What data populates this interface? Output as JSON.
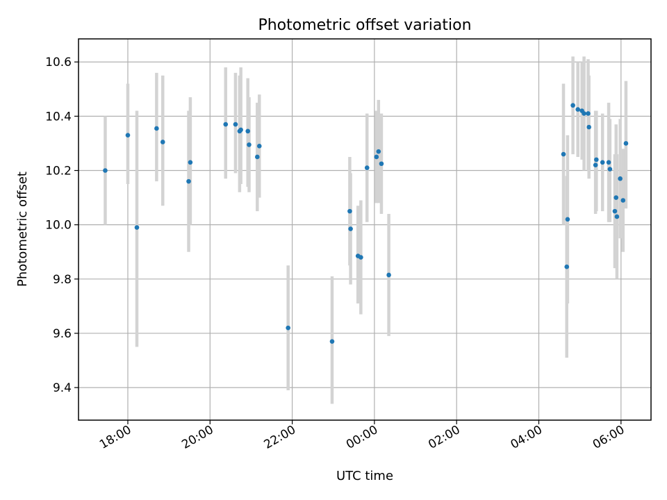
{
  "chart_data": {
    "type": "scatter",
    "title": "Photometric offset variation",
    "xlabel": "UTC time",
    "ylabel": "Photometric offset",
    "x_unit": "hours since 00:00 UTC",
    "xlim": [
      -7.2,
      6.73
    ],
    "ylim": [
      9.28,
      10.685
    ],
    "x_ticks": [
      {
        "value": -6,
        "label": "18:00"
      },
      {
        "value": -4,
        "label": "20:00"
      },
      {
        "value": -2,
        "label": "22:00"
      },
      {
        "value": 0,
        "label": "00:00"
      },
      {
        "value": 2,
        "label": "02:00"
      },
      {
        "value": 4,
        "label": "04:00"
      },
      {
        "value": 6,
        "label": "06:00"
      }
    ],
    "y_ticks": [
      {
        "value": 9.4,
        "label": "9.4"
      },
      {
        "value": 9.6,
        "label": "9.6"
      },
      {
        "value": 9.8,
        "label": "9.8"
      },
      {
        "value": 10.0,
        "label": "10.0"
      },
      {
        "value": 10.2,
        "label": "10.2"
      },
      {
        "value": 10.4,
        "label": "10.4"
      },
      {
        "value": 10.6,
        "label": "10.6"
      }
    ],
    "grid": true,
    "point_color": "#1f77b4",
    "errorbar_color": "#d3d3d3",
    "points": [
      {
        "x": -6.55,
        "y": 10.2,
        "lo": 10.0,
        "hi": 10.4
      },
      {
        "x": -6.0,
        "y": 10.33,
        "lo": 10.15,
        "hi": 10.52
      },
      {
        "x": -5.78,
        "y": 9.99,
        "lo": 9.55,
        "hi": 10.42
      },
      {
        "x": -5.3,
        "y": 10.355,
        "lo": 10.16,
        "hi": 10.56
      },
      {
        "x": -5.15,
        "y": 10.305,
        "lo": 10.07,
        "hi": 10.55
      },
      {
        "x": -4.52,
        "y": 10.16,
        "lo": 9.9,
        "hi": 10.42
      },
      {
        "x": -4.48,
        "y": 10.23,
        "lo": 10.0,
        "hi": 10.47
      },
      {
        "x": -3.62,
        "y": 10.37,
        "lo": 10.17,
        "hi": 10.58
      },
      {
        "x": -3.38,
        "y": 10.37,
        "lo": 10.19,
        "hi": 10.56
      },
      {
        "x": -3.28,
        "y": 10.345,
        "lo": 10.12,
        "hi": 10.55
      },
      {
        "x": -3.25,
        "y": 10.35,
        "lo": 10.15,
        "hi": 10.58
      },
      {
        "x": -3.08,
        "y": 10.345,
        "lo": 10.14,
        "hi": 10.54
      },
      {
        "x": -3.05,
        "y": 10.295,
        "lo": 10.12,
        "hi": 10.47
      },
      {
        "x": -2.85,
        "y": 10.25,
        "lo": 10.05,
        "hi": 10.45
      },
      {
        "x": -2.8,
        "y": 10.29,
        "lo": 10.1,
        "hi": 10.48
      },
      {
        "x": -2.1,
        "y": 9.62,
        "lo": 9.39,
        "hi": 9.85
      },
      {
        "x": -1.03,
        "y": 9.57,
        "lo": 9.34,
        "hi": 9.81
      },
      {
        "x": -0.6,
        "y": 10.05,
        "lo": 9.85,
        "hi": 10.25
      },
      {
        "x": -0.58,
        "y": 9.985,
        "lo": 9.78,
        "hi": 10.19
      },
      {
        "x": -0.4,
        "y": 9.885,
        "lo": 9.71,
        "hi": 10.07
      },
      {
        "x": -0.33,
        "y": 9.88,
        "lo": 9.67,
        "hi": 10.09
      },
      {
        "x": -0.18,
        "y": 10.21,
        "lo": 10.01,
        "hi": 10.41
      },
      {
        "x": 0.05,
        "y": 10.25,
        "lo": 10.08,
        "hi": 10.42
      },
      {
        "x": 0.1,
        "y": 10.27,
        "lo": 10.08,
        "hi": 10.46
      },
      {
        "x": 0.17,
        "y": 10.225,
        "lo": 10.04,
        "hi": 10.41
      },
      {
        "x": 0.35,
        "y": 9.815,
        "lo": 9.59,
        "hi": 10.04
      },
      {
        "x": 4.6,
        "y": 10.26,
        "lo": 10.0,
        "hi": 10.52
      },
      {
        "x": 4.68,
        "y": 9.845,
        "lo": 9.51,
        "hi": 10.18
      },
      {
        "x": 4.7,
        "y": 10.02,
        "lo": 9.71,
        "hi": 10.33
      },
      {
        "x": 4.83,
        "y": 10.44,
        "lo": 10.26,
        "hi": 10.62
      },
      {
        "x": 4.95,
        "y": 10.425,
        "lo": 10.25,
        "hi": 10.6
      },
      {
        "x": 5.05,
        "y": 10.42,
        "lo": 10.24,
        "hi": 10.6
      },
      {
        "x": 5.1,
        "y": 10.41,
        "lo": 10.2,
        "hi": 10.62
      },
      {
        "x": 5.2,
        "y": 10.41,
        "lo": 10.2,
        "hi": 10.61
      },
      {
        "x": 5.22,
        "y": 10.36,
        "lo": 10.17,
        "hi": 10.55
      },
      {
        "x": 5.38,
        "y": 10.22,
        "lo": 10.04,
        "hi": 10.42
      },
      {
        "x": 5.4,
        "y": 10.24,
        "lo": 10.05,
        "hi": 10.42
      },
      {
        "x": 5.55,
        "y": 10.23,
        "lo": 10.05,
        "hi": 10.41
      },
      {
        "x": 5.7,
        "y": 10.23,
        "lo": 10.01,
        "hi": 10.45
      },
      {
        "x": 5.73,
        "y": 10.205,
        "lo": 10.01,
        "hi": 10.39
      },
      {
        "x": 5.85,
        "y": 10.05,
        "lo": 9.84,
        "hi": 10.26
      },
      {
        "x": 5.88,
        "y": 10.1,
        "lo": 9.85,
        "hi": 10.37
      },
      {
        "x": 5.9,
        "y": 10.03,
        "lo": 9.8,
        "hi": 10.26
      },
      {
        "x": 5.98,
        "y": 10.17,
        "lo": 9.95,
        "hi": 10.39
      },
      {
        "x": 6.05,
        "y": 10.09,
        "lo": 9.9,
        "hi": 10.28
      },
      {
        "x": 6.12,
        "y": 10.3,
        "lo": 10.06,
        "hi": 10.53
      }
    ]
  }
}
